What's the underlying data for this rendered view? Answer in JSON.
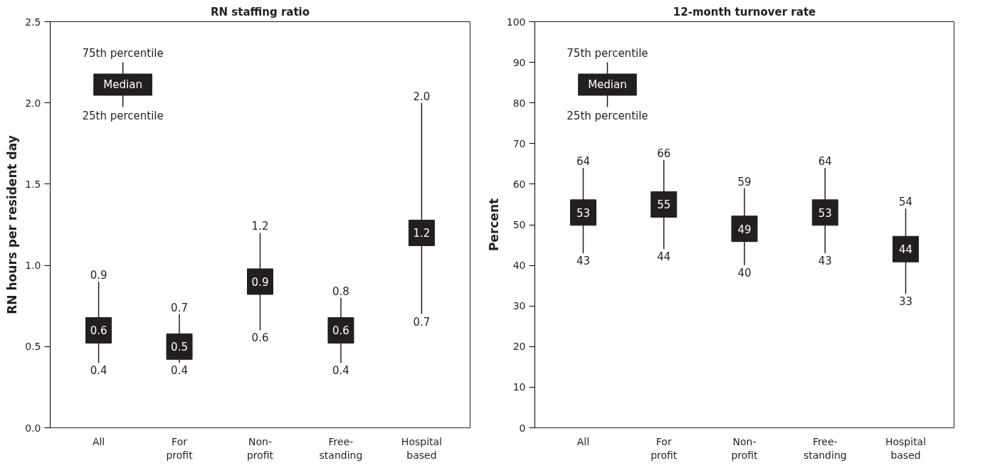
{
  "chart_data": [
    {
      "type": "scatter",
      "title": "RN staffing ratio",
      "ylabel": "RN hours per resident day",
      "categories": [
        "All",
        "For profit",
        "Non-profit",
        "Free-standing",
        "Hospital based"
      ],
      "series": [
        {
          "color": "#231f20",
          "values": [
            0.6,
            0.5,
            0.9,
            0.6,
            1.2
          ],
          "errors": [
            [
              0.4,
              0.9
            ],
            [
              0.4,
              0.7
            ],
            [
              0.6,
              1.2
            ],
            [
              0.4,
              0.8
            ],
            [
              0.7,
              2.0
            ]
          ]
        }
      ],
      "marker": "square",
      "data_labels": true,
      "grid": false,
      "ylim": [
        0,
        2.5
      ],
      "yticks": [
        {
          "value": 0,
          "label": "0.0"
        },
        {
          "value": 0.5,
          "label": "0.5"
        },
        {
          "value": 1,
          "label": "1.0"
        },
        {
          "value": 1.5,
          "label": "1.5"
        },
        {
          "value": 2,
          "label": "2.0"
        },
        {
          "value": 2.5,
          "label": "2.5"
        }
      ],
      "annotations": [
        "75th percentile",
        "Median",
        "25th percentile",
        {
          "text": "0.9",
          "x": "All",
          "y": 0.9
        },
        {
          "text": "0.7",
          "x": "For profit",
          "y": 0.7
        },
        {
          "text": "1.2",
          "x": "Non-profit",
          "y": 1.2
        },
        {
          "text": "0.8",
          "x": "Free-standing",
          "y": 0.8
        },
        {
          "text": "2.0",
          "x": "Hospital based",
          "y": 2.0
        },
        {
          "text": "0.4",
          "x": "All",
          "y": 0.4
        },
        {
          "text": "0.4",
          "x": "For profit",
          "y": 0.4
        },
        {
          "text": "0.6",
          "x": "Non-profit",
          "y": 0.6
        },
        {
          "text": "0.4",
          "x": "Free-standing",
          "y": 0.4
        },
        {
          "text": "0.7",
          "x": "Hospital based",
          "y": 0.7
        }
      ]
    },
    {
      "type": "scatter",
      "title": "12-month turnover rate",
      "ylabel": "Percent",
      "categories": [
        "All",
        "For profit",
        "Non-profit",
        "Free-standing",
        "Hospital based"
      ],
      "series": [
        {
          "color": "#231f20",
          "values": [
            53,
            55,
            49,
            53,
            44
          ],
          "errors": [
            [
              43,
              64
            ],
            [
              44,
              66
            ],
            [
              40,
              59
            ],
            [
              43,
              64
            ],
            [
              33,
              54
            ]
          ]
        }
      ],
      "marker": "square",
      "data_labels": true,
      "grid": false,
      "ylim": [
        0,
        100
      ],
      "yticks": [
        0,
        10,
        20,
        30,
        40,
        50,
        60,
        70,
        80,
        90,
        100
      ],
      "annotations": [
        "75th percentile",
        "Median",
        "25th percentile",
        {
          "text": "64",
          "x": "All",
          "y": 64
        },
        {
          "text": "66",
          "x": "For profit",
          "y": 66
        },
        {
          "text": "59",
          "x": "Non-profit",
          "y": 59
        },
        {
          "text": "64",
          "x": "Free-standing",
          "y": 64
        },
        {
          "text": "54",
          "x": "Hospital based",
          "y": 54
        },
        {
          "text": "43",
          "x": "All",
          "y": 43
        },
        {
          "text": "44",
          "x": "For profit",
          "y": 44
        },
        {
          "text": "40",
          "x": "Non-profit",
          "y": 40
        },
        {
          "text": "43",
          "x": "Free-standing",
          "y": 43
        },
        {
          "text": "33",
          "x": "Hospital based",
          "y": 33
        }
      ]
    }
  ]
}
